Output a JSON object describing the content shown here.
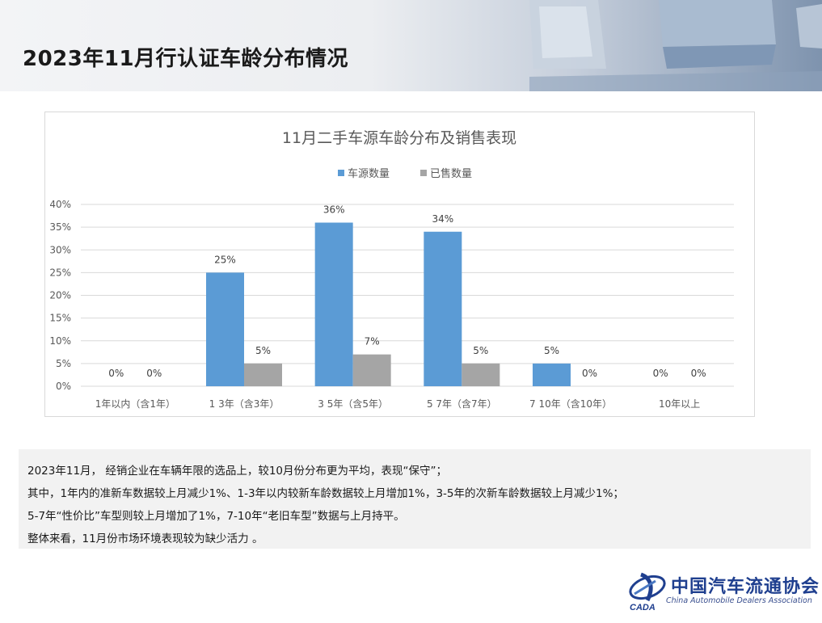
{
  "header": {
    "title": "2023年11月行认证车龄分布情况"
  },
  "chart_data": {
    "type": "bar",
    "title": "11月二手车源车龄分布及销售表现",
    "categories": [
      "1年以内（含1年）",
      "1 3年（含3年）",
      "3 5年（含5年）",
      "5 7年（含7年）",
      "7 10年（含10年）",
      "10年以上"
    ],
    "series": [
      {
        "name": "车源数量",
        "values": [
          0,
          25,
          36,
          34,
          5,
          0
        ],
        "labels": [
          "0%",
          "25%",
          "36%",
          "34%",
          "5%",
          "0%"
        ],
        "color": "#5b9bd5"
      },
      {
        "name": "已售数量",
        "values": [
          0,
          5,
          7,
          5,
          0,
          0
        ],
        "labels": [
          "0%",
          "5%",
          "7%",
          "5%",
          "0%",
          "0%"
        ],
        "color": "#a5a5a5"
      }
    ],
    "ylim": [
      0,
      40
    ],
    "yticks": [
      "0%",
      "5%",
      "10%",
      "15%",
      "20%",
      "25%",
      "30%",
      "35%",
      "40%"
    ],
    "grid": true,
    "legend": "top"
  },
  "notes": [
    "2023年11月， 经销企业在车辆年限的选品上，较10月份分布更为平均，表现“保守”；",
    "其中，1年内的准新车数据较上月减少1%、1-3年以内较新车龄数据较上月增加1%，3-5年的次新车龄数据较上月减少1%；",
    "5-7年“性价比”车型则较上月增加了1%，7-10年“老旧车型”数据与上月持平。",
    "整体来看，11月份市场环境表现较为缺少活力 。"
  ],
  "logo": {
    "cn": "中国汽车流通协会",
    "en": "China Automobile Dealers Association",
    "mark": "CADA"
  }
}
